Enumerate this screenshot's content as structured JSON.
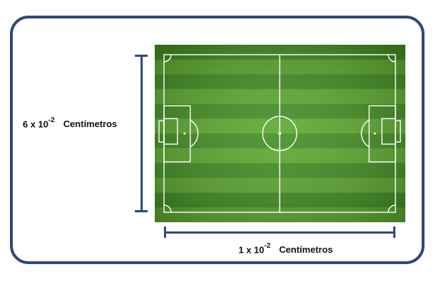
{
  "dimensions": {
    "height_label": {
      "value_prefix": "6 x 10",
      "exponent": "-2",
      "unit": "Centímetros"
    },
    "width_label": {
      "value_prefix": "1 x 10",
      "exponent": "-2",
      "unit": "Centímetros"
    }
  },
  "colors": {
    "frame": "#2b4a78",
    "grass_dark": "#3f8a1e",
    "grass_light": "#5aa52b",
    "lines": "#ffffff"
  }
}
